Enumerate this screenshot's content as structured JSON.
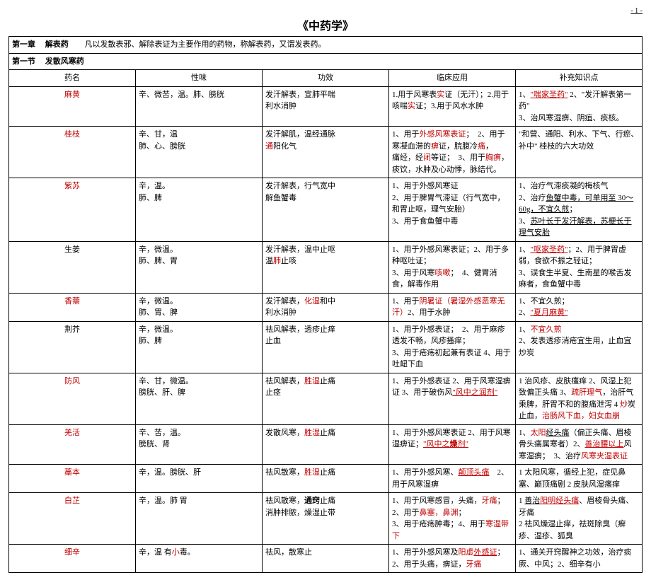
{
  "pageNumber": "- 1 -",
  "title": "《中药学》",
  "chapter": {
    "label": "第一章",
    "name": "解表药",
    "desc": "凡以发散表邪、解除表证为主要作用的药物，称解表药，又谓发表药。"
  },
  "section": {
    "label": "第一节",
    "name": "发散风寒药"
  },
  "headers": {
    "name": "药名",
    "taste": "性味",
    "effect": "功效",
    "clinic": "临床应用",
    "extra": "补充知识点"
  },
  "rows": [
    {
      "name": {
        "txt": "麻黄",
        "red": true
      },
      "taste": "辛、微苦，温。肺、膀胱",
      "effect": "发汗解表，宣肺平喘\n利水消肿",
      "clinic": "1.用于风寒表<span class='red'>实</span>证（无汗）；2.用于咳喘<span class='red'>实</span>证；3.用于风水水肿",
      "extra": "1、<span class='red u'>\"喘家圣药\"</span> 2、\"发汗解表第一药\"\n3、治风寒湿痹、阴疽、痰核。"
    },
    {
      "name": {
        "txt": "桂枝",
        "red": true
      },
      "taste": "辛、甘，温\n肺、心、膀胱",
      "effect": "发汗解肌，温经通脉\n<span class='red'>通</span>阳化气",
      "clinic": "1、用于<span class='red'>外感风寒表证</span>；　2、用于寒凝血滞的<span class='red'>痹</span>证，脘腹冷<span class='red'>痛</span>，\n痛经，经<span class='red'>闭</span>等证；　3、用于<span class='red'>胸痹</span>，痰饮，水肿及心动悸，脉结代。",
      "extra": "\"和营、通阳、利水、下气、行瘀、补中\" 桂枝的六大功效"
    },
    {
      "name": {
        "txt": "紫苏",
        "red": true
      },
      "taste": "辛，温。\n肺、脾",
      "effect": "发汗解表，行气宽中\n解鱼蟹毒",
      "clinic": "1、用于外感风寒证\n2、用于脾胃气滞证（行气宽中，和胃止呕，理气安胎）\n3、用于食鱼蟹中毒",
      "extra": "1、治疗气滞痰凝的梅核气\n2、治疗<span class='u'>鱼蟹中毒，可单用至 30～60g，不宜久煎</span>；\n3、<span class='u'>苏叶长于发汗解表，苏梗长于理气安胎</span>"
    },
    {
      "name": {
        "txt": "生姜",
        "red": false
      },
      "taste": "辛，微温。\n肺、脾、胃",
      "effect": "发汗解表，温中止呕\n温<span class='red'>肺</span>止咳",
      "clinic": "1、用于外感风寒表证；2、用于多种呕吐证；\n3、用于风寒<span class='red'>咳嗽</span>；　4、健胃消食，解毒作用",
      "extra": "1、<span class='red u'>\"呕家圣药\"</span>；2、用于脾胃虚弱，食欲不振之轻证；\n3、误食生半夏、生南星的喉舌发麻者，食鱼蟹中毒"
    },
    {
      "name": {
        "txt": "香薷",
        "red": true
      },
      "taste": "辛，微温。\n肺、胃、脾",
      "effect": "发汗解表，<span class='red'>化湿</span>和中\n利水消肿",
      "clinic": "1、用于<span class='red'>阴暑证（暑湿外感恶寒无汗）</span>2、用于水肿",
      "extra": "1、不宜久煎；\n2、<span class='red u'>\"夏月麻黄\"</span>"
    },
    {
      "name": {
        "txt": "荆芥",
        "red": false
      },
      "taste": "辛，微温。\n肺、脾",
      "effect": "祛风解表，透疹止痒\n止血",
      "clinic": "1、用于外感表证；　2、用于麻疹透发不畅，风疹搔痒；\n3、用于疮疡初起兼有表证 4、用于吐衄下血",
      "extra": "1、<span class='red'>不宜久煎</span>\n2、发表透疹消疮宜生用，止血宜炒炭"
    },
    {
      "name": {
        "txt": "防风",
        "red": true
      },
      "taste": "辛、甘，微温。\n膀胱、肝、脾",
      "effect": "祛风解表，<span class='red'>胜湿</span>止痛\n止痉",
      "clinic": "1、用于外感表证 2、用于风寒湿痹证 3、用于破伤风<span class='red u'>\"风中之润剂\"</span>",
      "extra": "1 治风疹、皮肤瘙痒 2、风湿上犯致偏正头痛 3、<span class='red'>疏肝理气</span>，治肝气乘脾，肝胃不和的腹痛泄泻 4 <span class='red'>炒</span>炭止血，<span class='red'>治肠风下血，妇女血崩</span>"
    },
    {
      "name": {
        "txt": "羌活",
        "red": true
      },
      "taste": "辛、苦，温。\n膀胱、肾",
      "effect": "发散风寒，<span class='red'>胜湿</span>止痛",
      "clinic": "1、用于外感风寒表证 2、用于风寒湿痹证；<span class='red u'>\"风中之<b>燥</b>剂\"</span>",
      "extra": "1、<span class='red'>太阳</span><span class='u'>经头痛</span>（偏正头痛、眉棱骨头痛属寒者）2、<span class='red u'>善治腰以上</span>风寒湿痹；　3、治疗<span class='red'>风寒夹湿表证</span>"
    },
    {
      "name": {
        "txt": "藁本",
        "red": true
      },
      "taste": "辛，温。膀胱、肝",
      "effect": "祛风散寒，<span class='red'>胜湿</span>止痛",
      "clinic": "1、用于外感风寒、<span class='red u'>颠顶头痛</span>　2、用于风寒湿痹",
      "extra": "1 太阳风寒，循经上犯，症见鼻塞、巅顶痛剧 2 皮肤风湿瘙痒"
    },
    {
      "name": {
        "txt": "白芷",
        "red": true
      },
      "taste": "辛，温。肺 胃",
      "effect": "祛风散寒，<b>通窍</b>止痛\n消肿排脓，燥湿止带",
      "clinic": "1、用于风寒感冒，头痛，<span class='red'>牙痛</span>；2、用于<span class='red'>鼻塞，鼻渊</span>；\n3、用于疮疡肿毒；4、用于<span class='red'>寒湿带下</span>",
      "extra": "1 <span class='u'>善治</span><span class='red u'>阳明经头痛</span>、眉棱骨头痛、牙痛\n2 祛风燥湿止痒，祛斑除臭（癣疹、湿疹、狐臭"
    },
    {
      "name": {
        "txt": "细辛",
        "red": true
      },
      "taste": "辛，温 有<span class='red'>小</span>毒。",
      "effect": "祛风，散寒止",
      "clinic": "1、用于外感风寒及<span class='red'>阳虚<span class='u'>外感证</span></span>；2、用于头痛，痹证，<span class='red'>牙痛</span>",
      "extra": "1、通关开窍醒神之功效，治疗痰厥、中风；2、细辛有小"
    }
  ]
}
